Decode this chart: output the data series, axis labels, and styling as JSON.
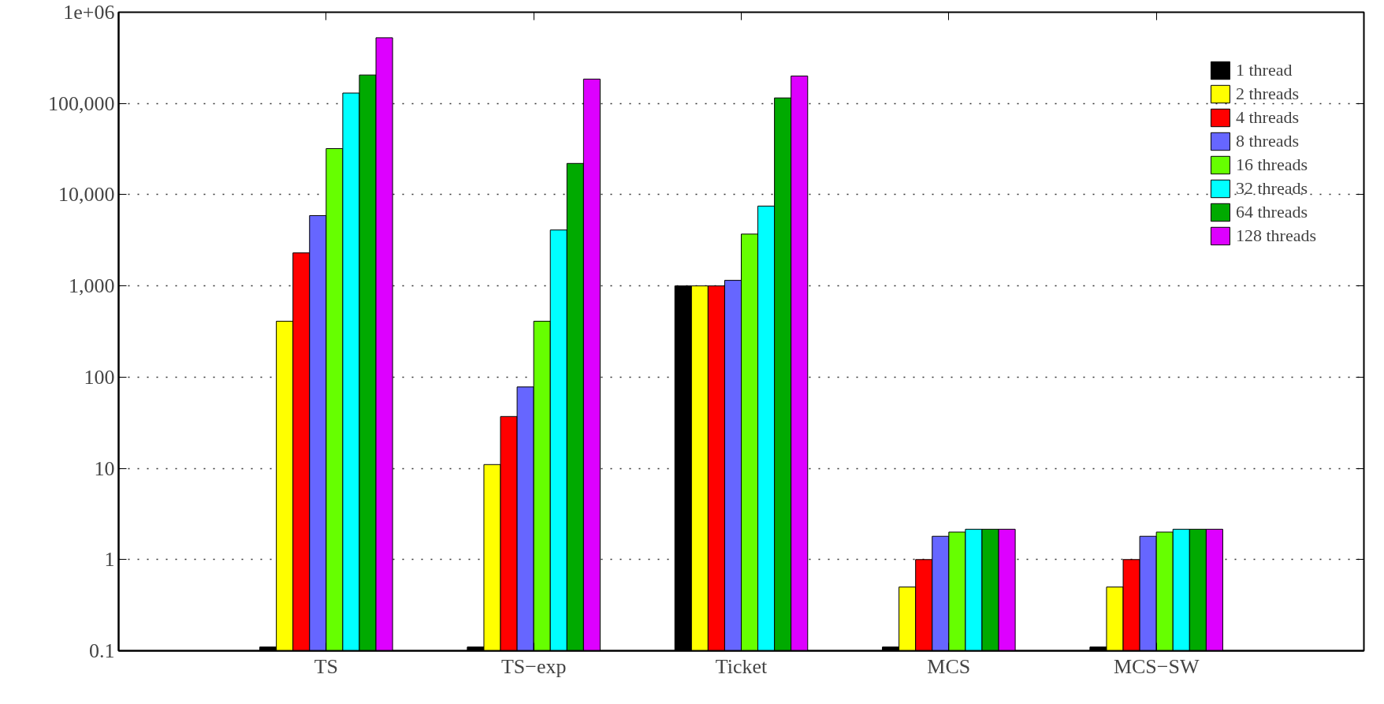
{
  "chart_data": {
    "type": "bar",
    "categories": [
      "TS",
      "TS−exp",
      "Ticket",
      "MCS",
      "MCS−SW"
    ],
    "series": [
      {
        "name": "1 thread",
        "color": "#000000",
        "values": [
          0.11,
          0.11,
          1000,
          0.11,
          0.11
        ]
      },
      {
        "name": "2 threads",
        "color": "#ffff00",
        "values": [
          410,
          11,
          1000,
          0.5,
          0.5
        ]
      },
      {
        "name": "4 threads",
        "color": "#ff0000",
        "values": [
          2300,
          37,
          1000,
          1,
          1
        ]
      },
      {
        "name": "8 threads",
        "color": "#6666ff",
        "values": [
          5900,
          78,
          1150,
          1.8,
          1.8
        ]
      },
      {
        "name": "16 threads",
        "color": "#66ff00",
        "values": [
          32000,
          410,
          3700,
          2,
          2
        ]
      },
      {
        "name": "32 threads",
        "color": "#00ffff",
        "values": [
          130000,
          4100,
          7500,
          2.15,
          2.15
        ]
      },
      {
        "name": "64 threads",
        "color": "#00aa00",
        "values": [
          205000,
          22000,
          115000,
          2.15,
          2.15
        ]
      },
      {
        "name": "128 threads",
        "color": "#dd00ff",
        "values": [
          525000,
          185000,
          200000,
          2.15,
          2.15
        ]
      }
    ],
    "log": "y",
    "ylim": [
      0.1,
      1000000
    ],
    "yticks": [
      0.1,
      1,
      10,
      100,
      {
        "value": 1000,
        "label": "1,000"
      },
      {
        "value": 10000,
        "label": "10,000"
      },
      {
        "value": 100000,
        "label": "100,000"
      },
      {
        "value": 1000000,
        "label": "1e+06"
      }
    ],
    "grid": "y",
    "legend": "top right",
    "line_style": "dotted"
  }
}
